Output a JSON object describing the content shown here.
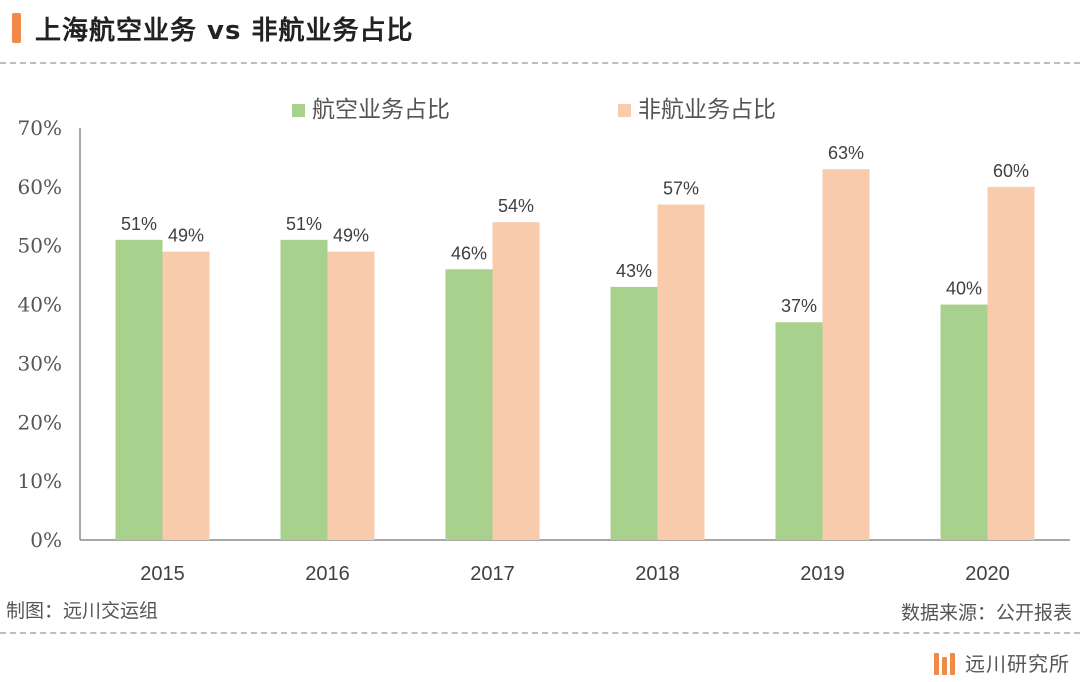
{
  "header": {
    "title": "上海航空业务 vs 非航业务占比"
  },
  "footer": {
    "made_by": "制图：远川交运组",
    "source": "数据来源：公开报表"
  },
  "brand": {
    "name": "远川研究所"
  },
  "colors": {
    "accent": "#f08a4b",
    "series_aviation": "#a9d18e",
    "series_non_aviation": "#f8cbad"
  },
  "chart_data": {
    "type": "bar",
    "categories": [
      "2015",
      "2016",
      "2017",
      "2018",
      "2019",
      "2020"
    ],
    "series": [
      {
        "name": "航空业务占比",
        "values": [
          51,
          51,
          46,
          43,
          37,
          40
        ],
        "labels": [
          "51%",
          "51%",
          "46%",
          "43%",
          "37%",
          "40%"
        ]
      },
      {
        "name": "非航业务占比",
        "values": [
          49,
          49,
          54,
          57,
          63,
          60
        ],
        "labels": [
          "49%",
          "49%",
          "54%",
          "57%",
          "63%",
          "60%"
        ]
      }
    ],
    "yticks": [
      "0%",
      "10%",
      "20%",
      "30%",
      "40%",
      "50%",
      "60%",
      "70%"
    ],
    "ylim": [
      0,
      70
    ],
    "grid": false,
    "legend": "top-center"
  }
}
